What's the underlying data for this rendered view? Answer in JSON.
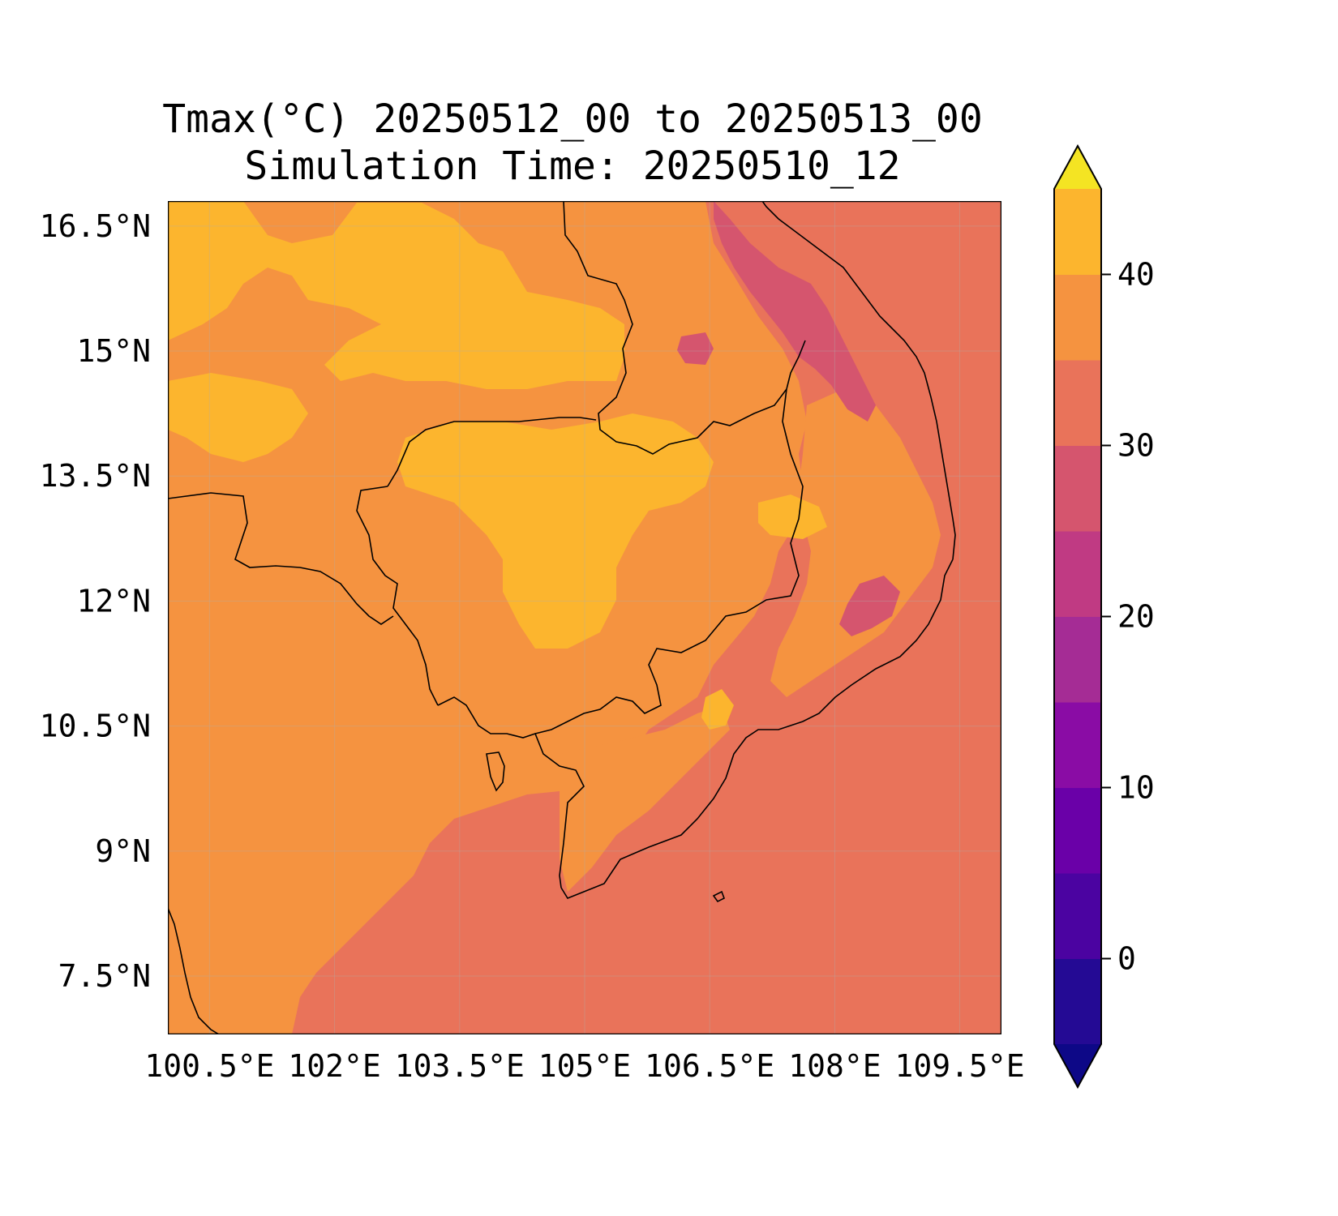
{
  "figure": {
    "title_line1": "Tmax(°C) 20250512_00 to 20250513_00",
    "title_line2": "Simulation Time: 20250510_12"
  },
  "map": {
    "lon_range": [
      100.0,
      110.0
    ],
    "lat_range": [
      6.8,
      16.8
    ],
    "lon_ticks": [
      100.5,
      102,
      103.5,
      105,
      106.5,
      108,
      109.5
    ],
    "lon_tick_labels": [
      "100.5°E",
      "102°E",
      "103.5°E",
      "105°E",
      "106.5°E",
      "108°E",
      "109.5°E"
    ],
    "lat_ticks": [
      16.5,
      15,
      13.5,
      12,
      10.5,
      9,
      7.5
    ],
    "lat_tick_labels": [
      "16.5°N",
      "15°N",
      "13.5°N",
      "12°N",
      "10.5°N",
      "9°N",
      "7.5°N"
    ],
    "gridlines": true,
    "background_field_color": "#e9735a",
    "land_field_color": "#f59340",
    "hot_field_color": "#fcb52e",
    "cool_field_color": "#d5556e",
    "coastline_color": "#000000"
  },
  "colorbar": {
    "levels": [
      -5,
      0,
      5,
      10,
      15,
      20,
      25,
      30,
      35,
      40,
      45
    ],
    "colors": [
      "#0d0887",
      "#240a94",
      "#4b03a1",
      "#6a00a8",
      "#8a0ca5",
      "#a52c95",
      "#c03a83",
      "#d5556e",
      "#e9735a",
      "#f59340",
      "#fcb52e",
      "#f4e423"
    ],
    "extend": "both",
    "ticks": [
      0,
      10,
      20,
      30,
      40
    ],
    "tick_labels": [
      "0",
      "10",
      "20",
      "30",
      "40"
    ]
  }
}
